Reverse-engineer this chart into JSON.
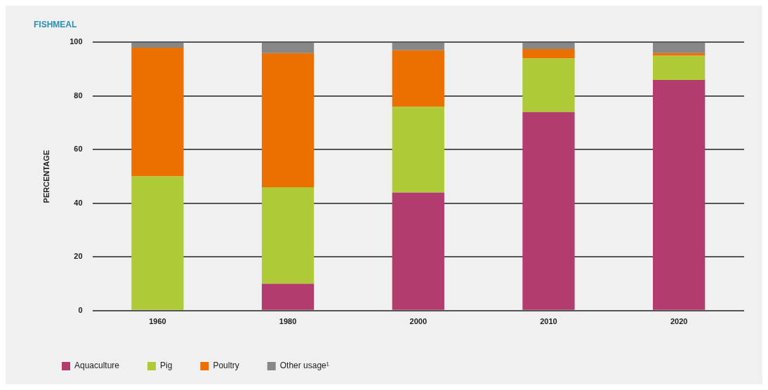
{
  "chart_data": {
    "type": "bar",
    "title": "FISHMEAL",
    "ylabel": "PERCENTAGE",
    "categories": [
      "1960",
      "1980",
      "2000",
      "2010",
      "2020"
    ],
    "stacked": true,
    "series": [
      {
        "name": "Aquaculture",
        "color": "#b33c6e",
        "values": [
          0,
          10,
          44,
          74,
          86
        ]
      },
      {
        "name": "Pig",
        "color": "#afca37",
        "values": [
          50,
          36,
          32,
          20,
          9
        ]
      },
      {
        "name": "Poultry",
        "color": "#ec7000",
        "values": [
          48,
          50,
          21,
          3.5,
          1
        ]
      },
      {
        "name": "Other usage¹",
        "color": "#878787",
        "values": [
          2,
          4,
          3,
          2.5,
          4
        ]
      }
    ],
    "ylim": [
      0,
      100
    ],
    "yticks": [
      0,
      20,
      40,
      60,
      80,
      100
    ],
    "grid": "y",
    "legend": "bottom left"
  }
}
